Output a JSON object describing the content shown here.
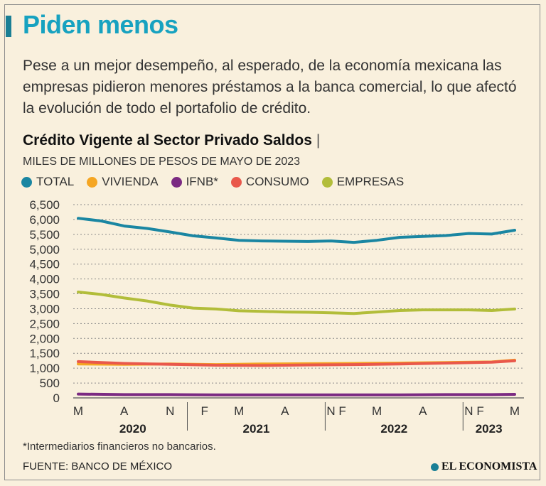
{
  "header": {
    "title": "Piden menos",
    "subtitle": "Pese a un mejor desempeño, al esperado, de la economía mexicana las empresas pidieron menores préstamos a la banca comercial, lo que afectó la evolución de todo el portafolio de crédito."
  },
  "chart_header": {
    "title": "Crédito Vigente al Sector Privado Saldos",
    "separator": "|",
    "units": "MILES DE MILLONES DE PESOS DE MAYO DE 2023"
  },
  "colors": {
    "accent": "#17a2c0",
    "total": "#1a86a2",
    "vivienda": "#f5a623",
    "ifnb": "#7b2a82",
    "consumo": "#e9584b",
    "empresas": "#b2bd3a",
    "background": "#f9f0dd"
  },
  "chart_data": {
    "type": "line",
    "title": "Crédito Vigente al Sector Privado Saldos",
    "ylabel": "MILES DE MILLONES DE PESOS DE MAYO DE 2023",
    "xlabel": "",
    "ylim": [
      0,
      6500
    ],
    "yticks": [
      "6,500",
      "6,000",
      "5,500",
      "5,000",
      "4,500",
      "4,000",
      "3,500",
      "3,000",
      "2,500",
      "2,000",
      "1,500",
      "1,000",
      "500",
      "0"
    ],
    "ytick_values": [
      6500,
      6000,
      5500,
      5000,
      4500,
      4000,
      3500,
      3000,
      2500,
      2000,
      1500,
      1000,
      500,
      0
    ],
    "grid": true,
    "x_start": "2020-03",
    "x_end": "2023-05",
    "x_ticks": [
      {
        "label": "M",
        "month_index": 0
      },
      {
        "label": "A",
        "month_index": 4
      },
      {
        "label": "N",
        "month_index": 8
      },
      {
        "label": "F",
        "month_index": 11
      },
      {
        "label": "M",
        "month_index": 14
      },
      {
        "label": "A",
        "month_index": 18
      },
      {
        "label": "N",
        "month_index": 22
      },
      {
        "label": "F",
        "month_index": 23
      },
      {
        "label": "M",
        "month_index": 26
      },
      {
        "label": "A",
        "month_index": 30
      },
      {
        "label": "N",
        "month_index": 34
      },
      {
        "label": "F",
        "month_index": 35
      },
      {
        "label": "M",
        "month_index": 38
      }
    ],
    "years": [
      {
        "label": "2020",
        "start_index": 0,
        "end_index": 9.5
      },
      {
        "label": "2021",
        "start_index": 9.5,
        "end_index": 21.5
      },
      {
        "label": "2022",
        "start_index": 21.5,
        "end_index": 33.5
      },
      {
        "label": "2023",
        "start_index": 33.5,
        "end_index": 38
      }
    ],
    "series": [
      {
        "name": "TOTAL",
        "color": "#1a86a2",
        "x": [
          0,
          2,
          4,
          6,
          8,
          10,
          12,
          14,
          16,
          18,
          20,
          22,
          24,
          26,
          28,
          30,
          32,
          34,
          36,
          38
        ],
        "values": [
          6040,
          5950,
          5780,
          5700,
          5580,
          5450,
          5380,
          5300,
          5280,
          5270,
          5260,
          5280,
          5230,
          5300,
          5400,
          5430,
          5460,
          5530,
          5510,
          5640
        ]
      },
      {
        "name": "VIVIENDA",
        "color": "#f5a623",
        "x": [
          0,
          4,
          8,
          12,
          16,
          20,
          24,
          28,
          32,
          36,
          38
        ],
        "values": [
          1140,
          1130,
          1140,
          1120,
          1140,
          1150,
          1160,
          1170,
          1190,
          1210,
          1270
        ]
      },
      {
        "name": "IFNB*",
        "color": "#7b2a82",
        "x": [
          0,
          4,
          8,
          12,
          16,
          20,
          24,
          28,
          32,
          36,
          38
        ],
        "values": [
          130,
          110,
          110,
          100,
          100,
          100,
          100,
          100,
          110,
          110,
          120
        ]
      },
      {
        "name": "CONSUMO",
        "color": "#e9584b",
        "x": [
          0,
          4,
          8,
          12,
          16,
          20,
          24,
          28,
          32,
          36,
          38
        ],
        "values": [
          1220,
          1160,
          1130,
          1100,
          1090,
          1110,
          1120,
          1140,
          1170,
          1200,
          1250
        ]
      },
      {
        "name": "EMPRESAS",
        "color": "#b2bd3a",
        "x": [
          0,
          2,
          4,
          6,
          8,
          10,
          12,
          14,
          16,
          18,
          20,
          22,
          24,
          26,
          28,
          30,
          32,
          34,
          36,
          38
        ],
        "values": [
          3560,
          3480,
          3360,
          3260,
          3120,
          3020,
          2990,
          2930,
          2910,
          2890,
          2880,
          2860,
          2840,
          2890,
          2940,
          2960,
          2960,
          2960,
          2940,
          2990
        ]
      }
    ]
  },
  "footer": {
    "footnote": "*Intermediarios financieros no bancarios.",
    "source": "FUENTE: BANCO DE MÉXICO",
    "brand": "EL ECONOMISTA"
  }
}
